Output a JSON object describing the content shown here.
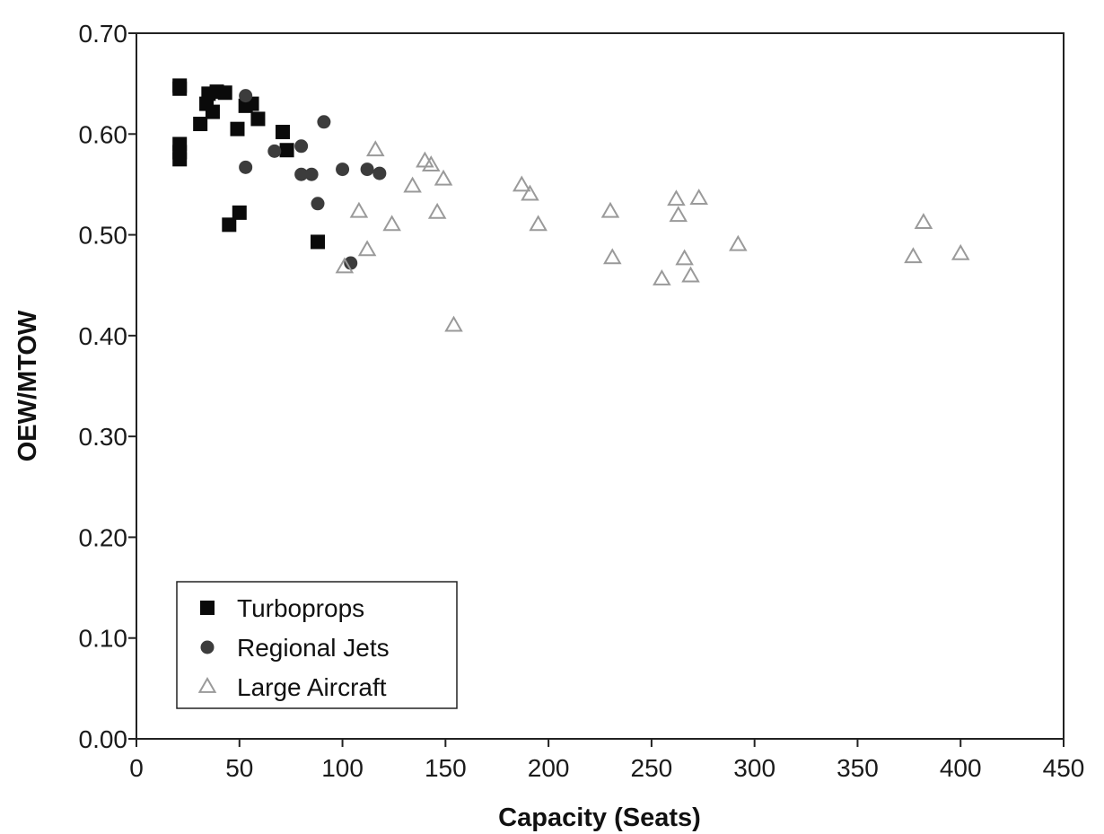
{
  "chart_data": {
    "type": "scatter",
    "xlabel": "Capacity (Seats)",
    "ylabel": "OEW/MTOW",
    "xlim": [
      0,
      450
    ],
    "ylim": [
      0,
      0.7
    ],
    "x_ticks": [
      0,
      50,
      100,
      150,
      200,
      250,
      300,
      350,
      400,
      450
    ],
    "x_tick_labels": [
      "0",
      "50",
      "100",
      "150",
      "200",
      "250",
      "300",
      "350",
      "400",
      "450"
    ],
    "y_ticks": [
      0,
      0.1,
      0.2,
      0.3,
      0.4,
      0.5,
      0.6,
      0.7
    ],
    "y_tick_labels": [
      "0.00",
      "0.10",
      "0.20",
      "0.30",
      "0.40",
      "0.50",
      "0.60",
      "0.70"
    ],
    "grid": false,
    "legend_position": "bottom-left",
    "series": [
      {
        "name": "Turboprops",
        "marker": "square",
        "color": "#0a0a0a",
        "points": [
          [
            21,
            0.648
          ],
          [
            21,
            0.645
          ],
          [
            21,
            0.59
          ],
          [
            21,
            0.582
          ],
          [
            21,
            0.575
          ],
          [
            31,
            0.61
          ],
          [
            34,
            0.63
          ],
          [
            35,
            0.64
          ],
          [
            37,
            0.622
          ],
          [
            39,
            0.642
          ],
          [
            43,
            0.641
          ],
          [
            45,
            0.51
          ],
          [
            49,
            0.605
          ],
          [
            50,
            0.522
          ],
          [
            53,
            0.628
          ],
          [
            56,
            0.63
          ],
          [
            59,
            0.615
          ],
          [
            71,
            0.602
          ],
          [
            73,
            0.584
          ],
          [
            88,
            0.493
          ]
        ]
      },
      {
        "name": "Regional Jets",
        "marker": "circle",
        "color": "#3c3c3c",
        "points": [
          [
            53,
            0.638
          ],
          [
            53,
            0.567
          ],
          [
            67,
            0.583
          ],
          [
            80,
            0.588
          ],
          [
            80,
            0.56
          ],
          [
            85,
            0.56
          ],
          [
            88,
            0.531
          ],
          [
            91,
            0.612
          ],
          [
            100,
            0.565
          ],
          [
            104,
            0.472
          ],
          [
            112,
            0.565
          ],
          [
            118,
            0.561
          ]
        ]
      },
      {
        "name": "Large Aircraft",
        "marker": "triangle-open",
        "color": "#9a9a9a",
        "points": [
          [
            101,
            0.468
          ],
          [
            108,
            0.523
          ],
          [
            112,
            0.485
          ],
          [
            116,
            0.584
          ],
          [
            124,
            0.51
          ],
          [
            134,
            0.548
          ],
          [
            140,
            0.573
          ],
          [
            143,
            0.569
          ],
          [
            146,
            0.522
          ],
          [
            149,
            0.555
          ],
          [
            154,
            0.41
          ],
          [
            187,
            0.549
          ],
          [
            191,
            0.54
          ],
          [
            195,
            0.51
          ],
          [
            230,
            0.523
          ],
          [
            231,
            0.477
          ],
          [
            255,
            0.456
          ],
          [
            262,
            0.535
          ],
          [
            263,
            0.519
          ],
          [
            266,
            0.476
          ],
          [
            269,
            0.459
          ],
          [
            273,
            0.536
          ],
          [
            292,
            0.49
          ],
          [
            377,
            0.478
          ],
          [
            382,
            0.512
          ],
          [
            400,
            0.481
          ]
        ]
      }
    ]
  }
}
